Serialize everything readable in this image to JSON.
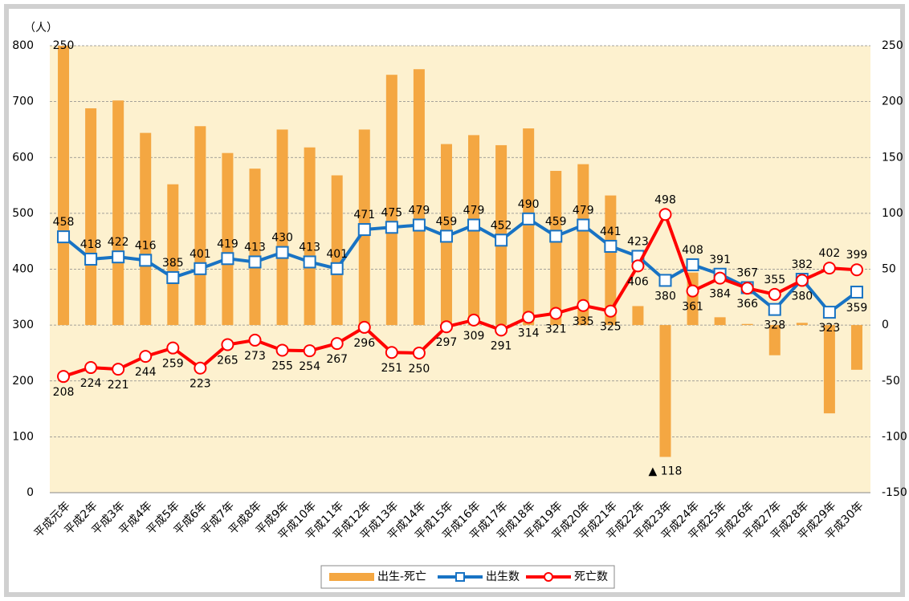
{
  "chart_data": {
    "type": "combo",
    "y_label": "（人）",
    "categories": [
      "平成元年",
      "平成2年",
      "平成3年",
      "平成4年",
      "平成5年",
      "平成6年",
      "平成7年",
      "平成8年",
      "平成9年",
      "平成10年",
      "平成11年",
      "平成12年",
      "平成13年",
      "平成14年",
      "平成15年",
      "平成16年",
      "平成17年",
      "平成18年",
      "平成19年",
      "平成20年",
      "平成21年",
      "平成22年",
      "平成23年",
      "平成24年",
      "平成25年",
      "平成26年",
      "平成27年",
      "平成28年",
      "平成29年",
      "平成30年"
    ],
    "series": [
      {
        "name": "出生-死亡",
        "type": "bar",
        "axis": "y2",
        "color": "#f4a742",
        "values": [
          250,
          194,
          201,
          172,
          126,
          178,
          154,
          140,
          175,
          159,
          134,
          175,
          224,
          229,
          162,
          170,
          161,
          176,
          138,
          144,
          116,
          17,
          -118,
          47,
          7,
          1,
          -27,
          2,
          -79,
          -40
        ],
        "value_labels": [
          "250",
          null,
          null,
          null,
          null,
          null,
          null,
          null,
          null,
          null,
          null,
          null,
          null,
          null,
          null,
          null,
          null,
          null,
          null,
          null,
          null,
          null,
          "▲ 118",
          null,
          null,
          null,
          null,
          null,
          null,
          null
        ]
      },
      {
        "name": "出生数",
        "type": "line",
        "marker": "square",
        "color": "#1873c4",
        "values": [
          458,
          418,
          422,
          416,
          385,
          401,
          419,
          413,
          430,
          413,
          401,
          471,
          475,
          479,
          459,
          479,
          452,
          490,
          459,
          479,
          441,
          423,
          380,
          408,
          391,
          367,
          328,
          382,
          323,
          359
        ]
      },
      {
        "name": "死亡数",
        "type": "line",
        "marker": "circle",
        "color": "#ff0000",
        "values": [
          208,
          224,
          221,
          244,
          259,
          223,
          265,
          273,
          255,
          254,
          267,
          296,
          251,
          250,
          297,
          309,
          291,
          314,
          321,
          335,
          325,
          406,
          498,
          361,
          384,
          366,
          355,
          380,
          402,
          399
        ]
      }
    ],
    "ylim": [
      0,
      800
    ],
    "yticks": [
      0,
      100,
      200,
      300,
      400,
      500,
      600,
      700,
      800
    ],
    "y2lim": [
      -150,
      250
    ],
    "y2ticks": [
      -150,
      -100,
      -50,
      0,
      50,
      100,
      150,
      200,
      250
    ],
    "grid": true,
    "legend": "bottom"
  }
}
